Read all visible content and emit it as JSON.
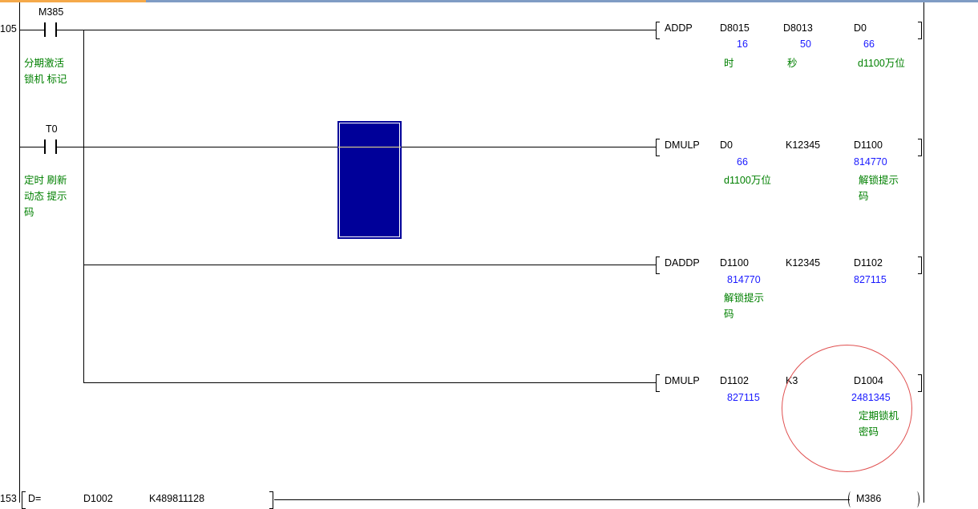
{
  "colors": {
    "value": "#1a1aff",
    "comment": "#008000",
    "cursor": "#000099",
    "highlight_circle": "#e05050"
  },
  "rungs": [
    {
      "step": "105",
      "contacts": [
        {
          "device": "M385",
          "comment_lines": [
            "分期激活",
            "锁机 标记"
          ]
        },
        {
          "device": "T0",
          "comment_lines": [
            "定时 刷新",
            "动态 提示",
            "码"
          ]
        }
      ],
      "instructions": [
        {
          "op": "ADDP",
          "operands": [
            {
              "name": "D8015",
              "value": "16",
              "comment": [
                "时"
              ]
            },
            {
              "name": "D8013",
              "value": "50",
              "comment": [
                "秒"
              ]
            },
            {
              "name": "D0",
              "value": "66",
              "comment": [
                "d1100万位"
              ]
            }
          ]
        },
        {
          "op": "DMULP",
          "operands": [
            {
              "name": "D0",
              "value": "66",
              "comment": [
                "d1100万位"
              ]
            },
            {
              "name": "K12345"
            },
            {
              "name": "D1100",
              "value": "814770",
              "comment": [
                "解锁提示",
                "码"
              ]
            }
          ]
        },
        {
          "op": "DADDP",
          "operands": [
            {
              "name": "D1100",
              "value": "814770",
              "comment": [
                "解锁提示",
                "码"
              ]
            },
            {
              "name": "K12345"
            },
            {
              "name": "D1102",
              "value": "827115"
            }
          ]
        },
        {
          "op": "DMULP",
          "operands": [
            {
              "name": "D1102",
              "value": "827115"
            },
            {
              "name": "K3"
            },
            {
              "name": "D1004",
              "value": "2481345",
              "comment": [
                "定期锁机",
                "密码"
              ]
            }
          ]
        }
      ]
    },
    {
      "step": "153",
      "compare": {
        "op": "D=",
        "operands": [
          "D1002",
          "K489811128"
        ]
      },
      "coil": "M386"
    }
  ]
}
